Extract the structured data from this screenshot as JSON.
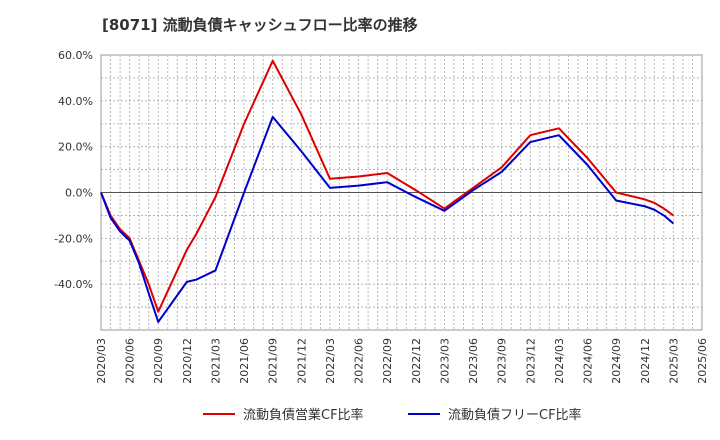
{
  "chart_data": {
    "type": "line",
    "title": "[8071]  流動負債キャッシュフロー比率の推移",
    "xlabel": "",
    "ylabel": "",
    "x": [
      "2020/03",
      "2020/06",
      "2020/09",
      "2020/12",
      "2021/03",
      "2021/06",
      "2021/09",
      "2021/12",
      "2022/03",
      "2022/06",
      "2022/09",
      "2022/12",
      "2023/03",
      "2023/06",
      "2023/09",
      "2023/12",
      "2024/03",
      "2024/06",
      "2024/09",
      "2024/12",
      "2025/03",
      "2025/06"
    ],
    "ylim": [
      -60,
      60
    ],
    "yticks": [
      "60.0%",
      "40.0%",
      "20.0%",
      "0.0%",
      "-20.0%",
      "-40.0%"
    ],
    "ytick_values": [
      60,
      40,
      20,
      0,
      -20,
      -40
    ],
    "grid": true,
    "legend_position": "bottom",
    "series": [
      {
        "name": "流動負債営業CF比率",
        "color": "#dd0000",
        "points": [
          [
            "2020/03",
            0.0
          ],
          [
            "2020/04",
            -10.0
          ],
          [
            "2020/05",
            -16.0
          ],
          [
            "2020/06",
            -20.0
          ],
          [
            "2020/07",
            -30.0
          ],
          [
            "2020/08",
            -40.0
          ],
          [
            "2020/09",
            -52.0
          ],
          [
            "2020/12",
            -25.0
          ],
          [
            "2021/01",
            -18.0
          ],
          [
            "2021/02",
            -10.0
          ],
          [
            "2021/03",
            -2.0
          ],
          [
            "2021/06",
            30.0
          ],
          [
            "2021/09",
            57.5
          ],
          [
            "2021/12",
            34.0
          ],
          [
            "2022/03",
            6.0
          ],
          [
            "2022/06",
            7.0
          ],
          [
            "2022/09",
            8.5
          ],
          [
            "2022/12",
            1.0
          ],
          [
            "2023/03",
            -7.0
          ],
          [
            "2023/06",
            2.0
          ],
          [
            "2023/09",
            11.0
          ],
          [
            "2023/12",
            25.0
          ],
          [
            "2024/03",
            28.0
          ],
          [
            "2024/06",
            15.0
          ],
          [
            "2024/09",
            0.0
          ],
          [
            "2024/12",
            -3.0
          ],
          [
            "2025/01",
            -4.5
          ],
          [
            "2025/02",
            -7.0
          ],
          [
            "2025/03",
            -10.0
          ]
        ]
      },
      {
        "name": "流動負債フリーCF比率",
        "color": "#0000cc",
        "points": [
          [
            "2020/03",
            0.0
          ],
          [
            "2020/04",
            -11.0
          ],
          [
            "2020/05",
            -17.0
          ],
          [
            "2020/06",
            -21.0
          ],
          [
            "2020/07",
            -31.0
          ],
          [
            "2020/08",
            -44.0
          ],
          [
            "2020/09",
            -56.5
          ],
          [
            "2020/12",
            -39.0
          ],
          [
            "2021/01",
            -38.0
          ],
          [
            "2021/02",
            -36.0
          ],
          [
            "2021/03",
            -34.0
          ],
          [
            "2021/06",
            0.0
          ],
          [
            "2021/09",
            33.0
          ],
          [
            "2021/12",
            18.0
          ],
          [
            "2022/03",
            2.0
          ],
          [
            "2022/06",
            3.0
          ],
          [
            "2022/09",
            4.5
          ],
          [
            "2022/12",
            -2.0
          ],
          [
            "2023/03",
            -8.0
          ],
          [
            "2023/06",
            1.0
          ],
          [
            "2023/09",
            9.0
          ],
          [
            "2023/12",
            22.0
          ],
          [
            "2024/03",
            25.0
          ],
          [
            "2024/06",
            12.0
          ],
          [
            "2024/09",
            -3.5
          ],
          [
            "2024/12",
            -6.0
          ],
          [
            "2025/01",
            -7.5
          ],
          [
            "2025/02",
            -10.0
          ],
          [
            "2025/03",
            -13.5
          ]
        ]
      }
    ]
  }
}
